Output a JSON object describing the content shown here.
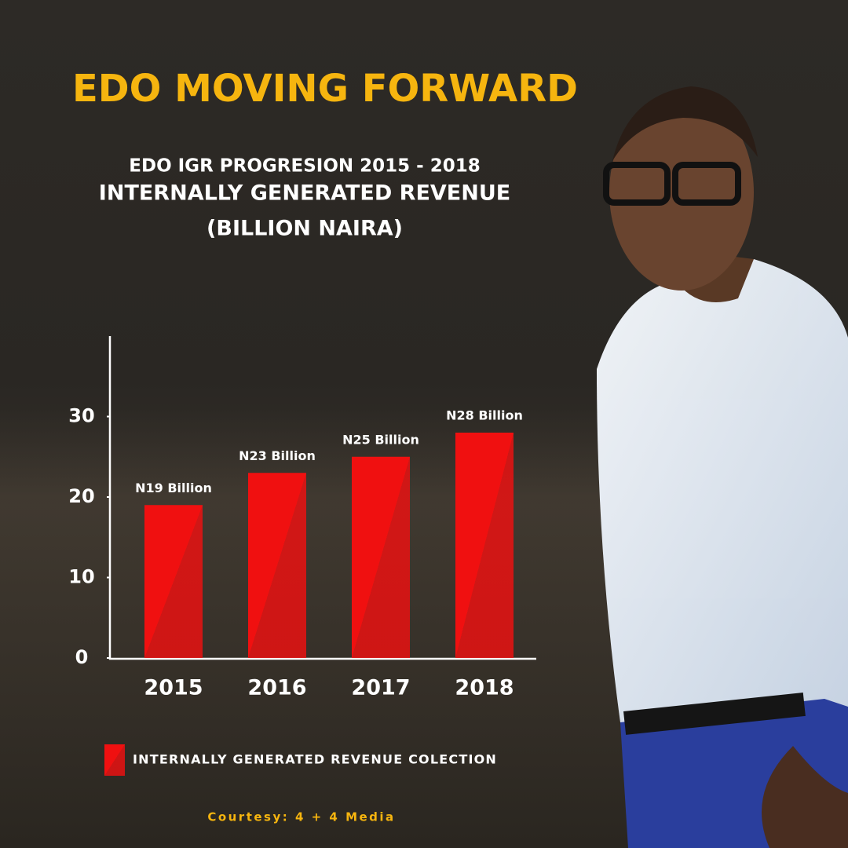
{
  "chart_data": {
    "type": "bar",
    "title": "EDO MOVING FORWARD",
    "subtitle": [
      "EDO IGR PROGRESION 2015 - 2018",
      "INTERNALLY GENERATED REVENUE",
      "(BILLION NAIRA)"
    ],
    "categories": [
      "2015",
      "2016",
      "2017",
      "2018"
    ],
    "series": [
      {
        "name": "INTERNALLY GENERATED REVENUE COLECTION",
        "color": "#f01010",
        "values": [
          19,
          23,
          25,
          28
        ],
        "value_labels": [
          "N19 Billion",
          "N23 Billion",
          "N25 Billion",
          "N28 Billion"
        ]
      }
    ],
    "ylim": [
      0,
      40
    ],
    "yticks": [
      0,
      10,
      20,
      30
    ],
    "legend": "bottom-left"
  },
  "footer": "Courtesy: 4 + 4 Media"
}
